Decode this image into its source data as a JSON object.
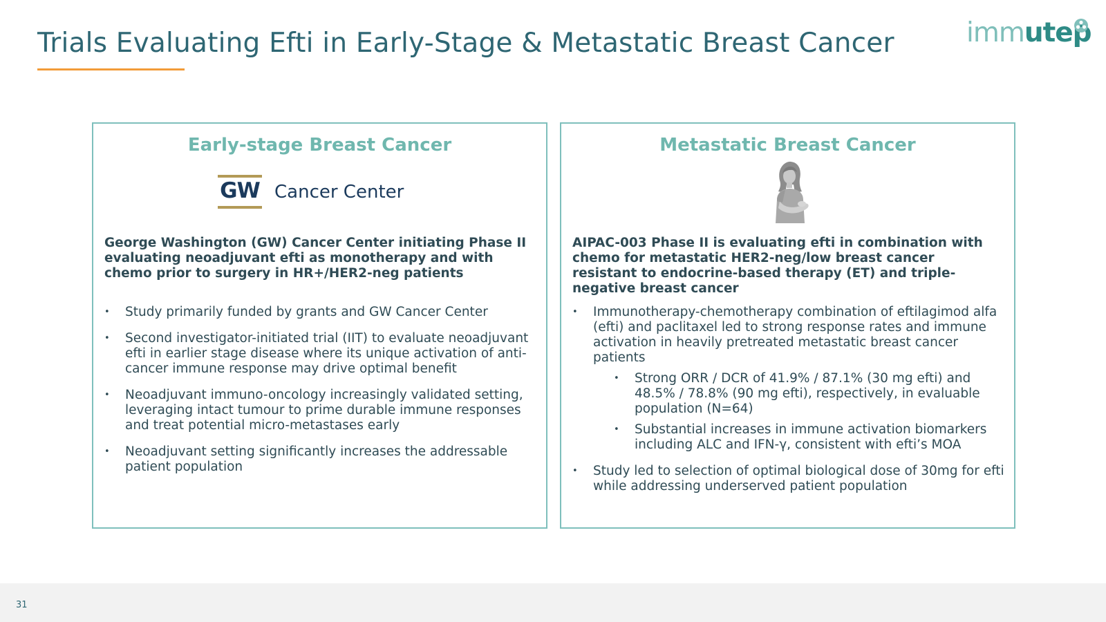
{
  "slide": {
    "title": "Trials Evaluating Efti in Early-Stage & Metastatic Breast Cancer",
    "page_number": "31",
    "accent_color": "#f29b38",
    "title_color": "#2e6673"
  },
  "logo": {
    "part_a": "imm",
    "part_b": "utep",
    "icon": "immutep-mark-icon"
  },
  "early": {
    "heading": "Early-stage Breast Cancer",
    "partner_logo": {
      "letters": "GW",
      "name": "Cancer Center"
    },
    "intro": "George Washington (GW) Cancer Center initiating Phase II evaluating neoadjuvant efti as monotherapy and with chemo prior to surgery in HR+/HER2-neg patients",
    "bullets": [
      "Study primarily funded by grants and GW Cancer Center",
      "Second investigator-initiated trial (IIT) to evaluate neoadjuvant efti in earlier stage disease where its unique activation of anti-cancer immune response may drive optimal benefit",
      "Neoadjuvant immuno-oncology increasingly validated setting, leveraging intact tumour to prime durable immune responses and treat potential micro-metastases early",
      "Neoadjuvant setting significantly increases the addressable patient population"
    ]
  },
  "metastatic": {
    "heading": "Metastatic Breast Cancer",
    "icon": "breast-cancer-patient-icon",
    "intro": "AIPAC-003 Phase II is evaluating efti in combination with chemo for metastatic HER2-neg/low breast cancer resistant to endocrine-based therapy (ET) and triple-negative breast cancer",
    "bullets": [
      "Immunotherapy-chemotherapy combination of eftilagimod alfa (efti) and paclitaxel led to strong response rates and immune activation in heavily pretreated metastatic breast cancer patients",
      "Study led to selection of optimal biological dose of 30mg for efti while addressing underserved patient population"
    ],
    "sub_bullets": [
      "Strong ORR / DCR of 41.9% / 87.1% (30 mg efti) and 48.5% / 78.8% (90 mg efti), respectively, in evaluable population (N=64)",
      "Substantial increases in immune activation biomarkers including ALC and IFN-γ, consistent with efti’s MOA"
    ]
  },
  "colors": {
    "panel_border": "#7ebfbc",
    "panel_heading": "#6fb7ae",
    "gw_navy": "#1b3a5c",
    "gw_gold": "#b39a57",
    "logo_teal": "#2e8b86",
    "footer": "#f2f2f2"
  }
}
